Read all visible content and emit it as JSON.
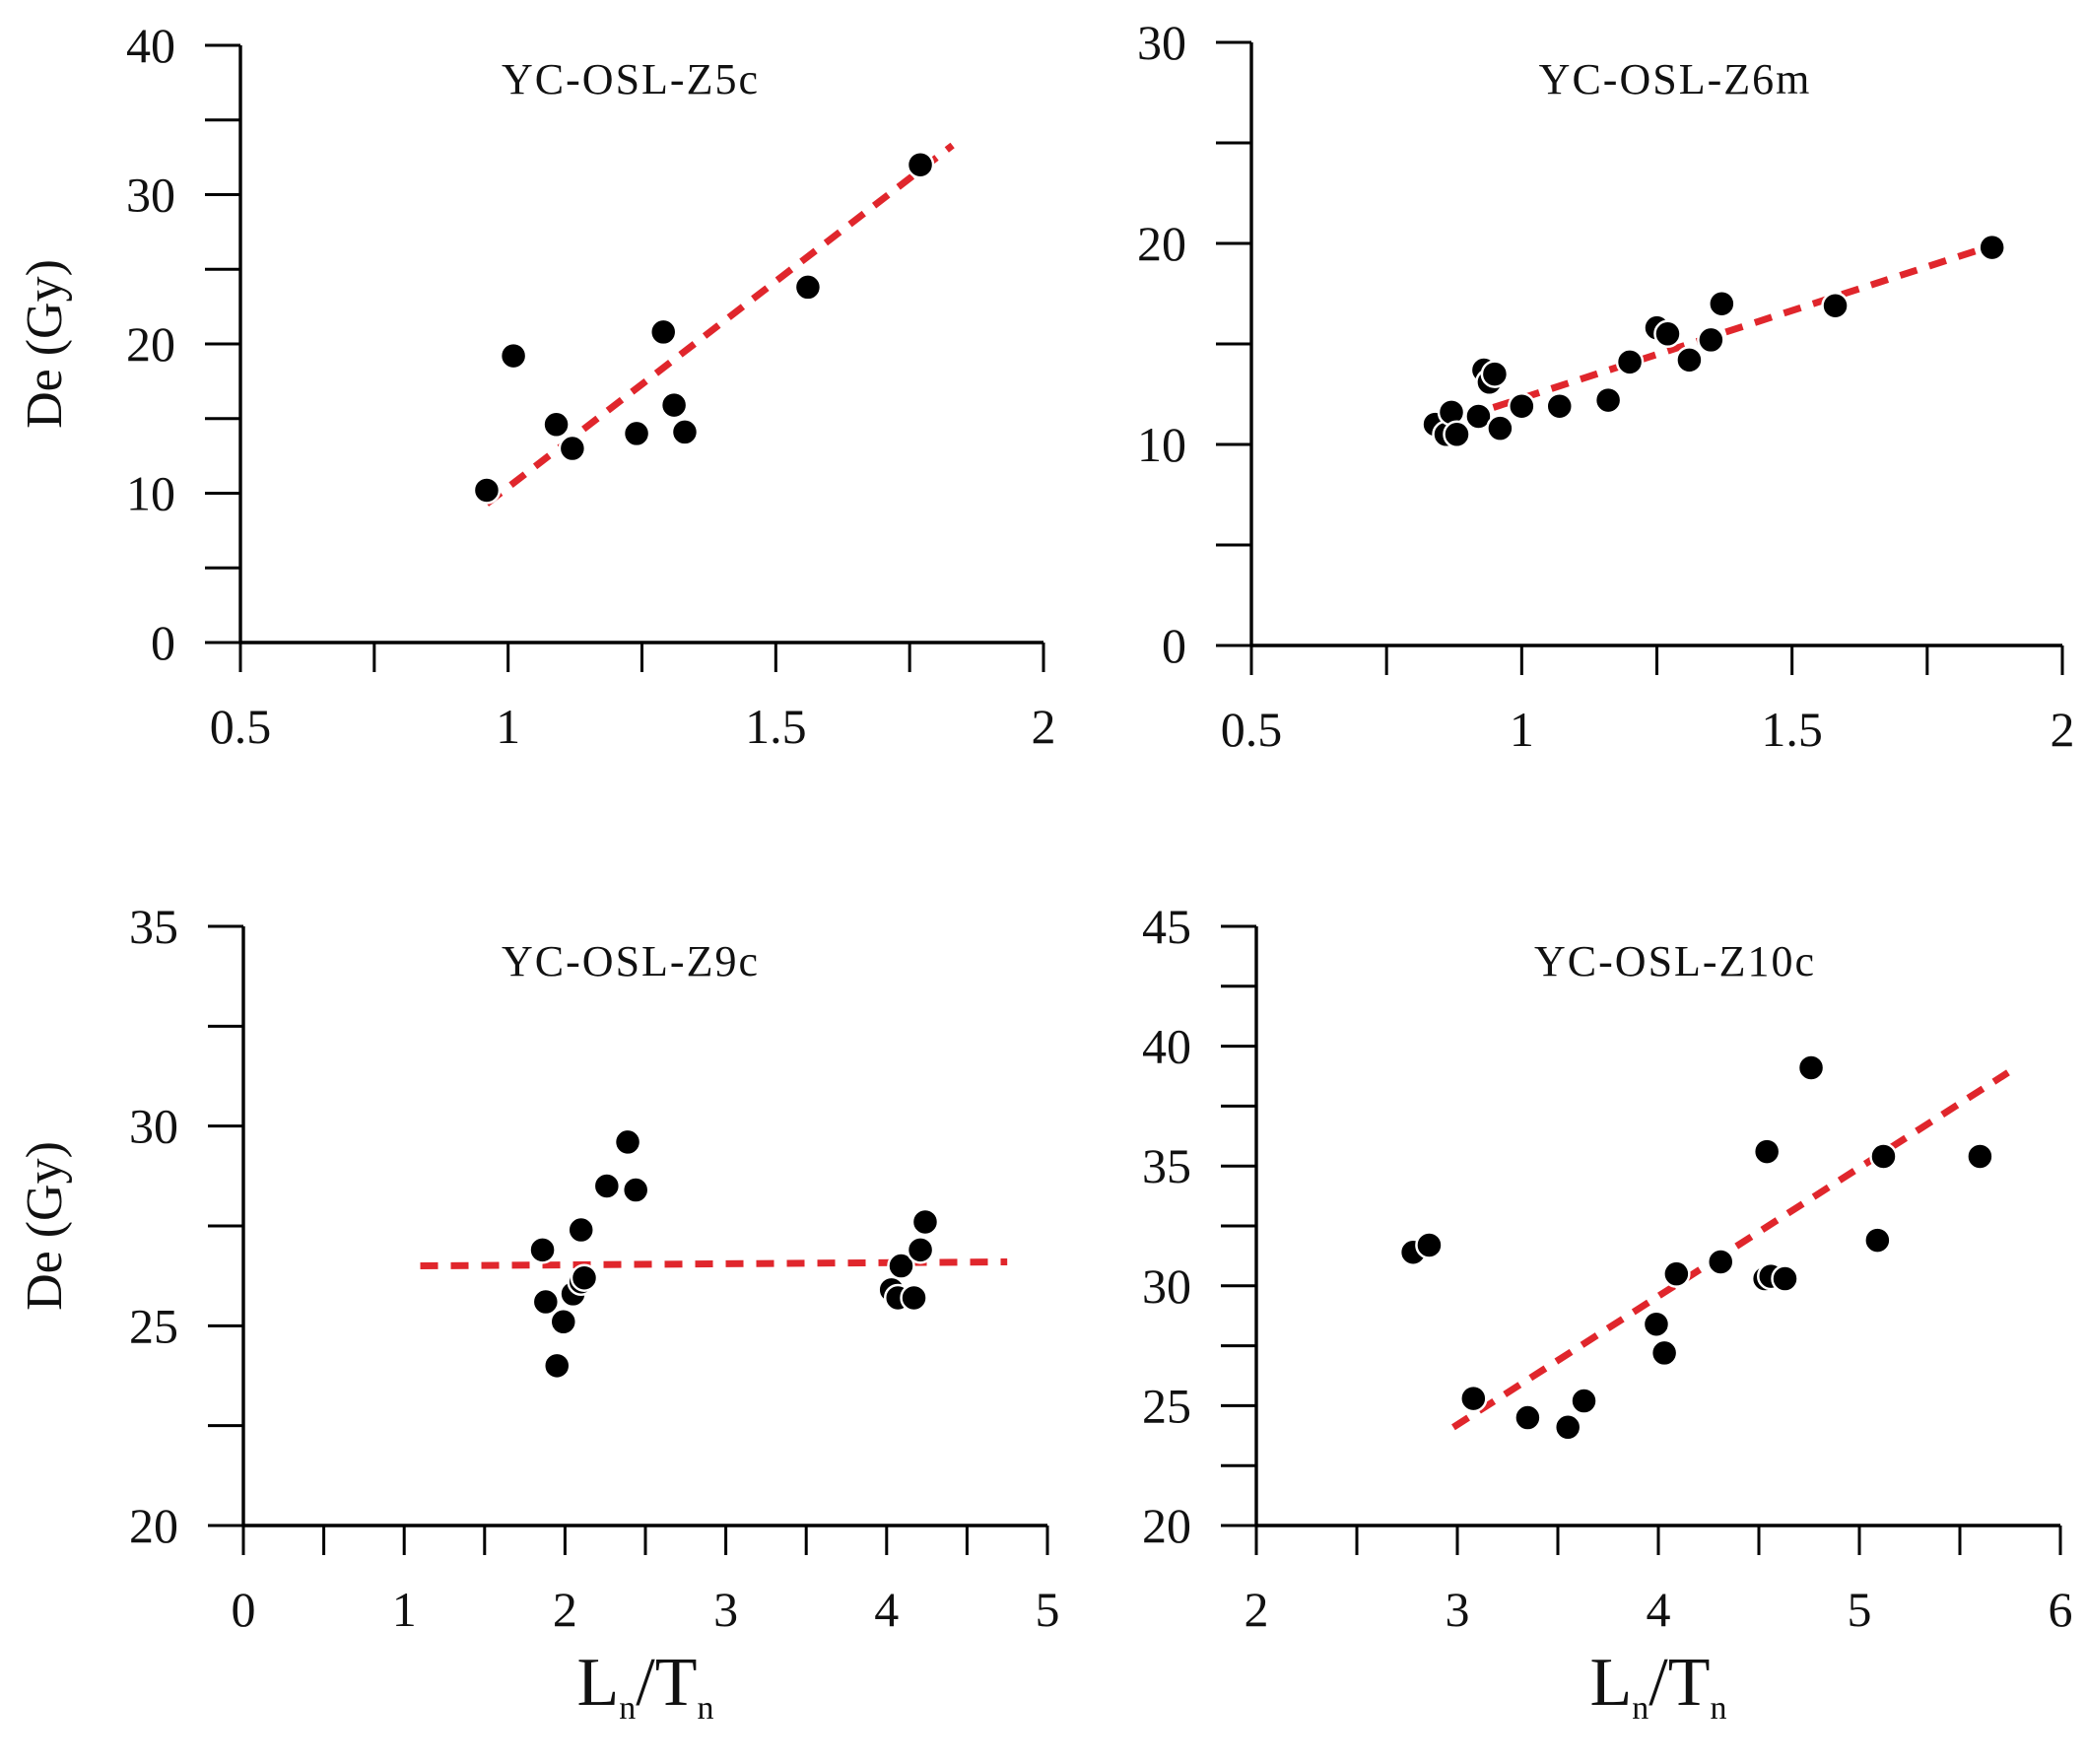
{
  "chart_data": [
    {
      "type": "scatter",
      "title": "YC-OSL-Z5c",
      "xlabel": "",
      "ylabel": "De (Gy)",
      "xlim": [
        0.5,
        2
      ],
      "ylim": [
        0,
        40
      ],
      "xticks": [
        0.5,
        0.75,
        1,
        1.25,
        1.5,
        1.75,
        2
      ],
      "xticklabels": [
        "0.5",
        "",
        "1",
        "",
        "1.5",
        "",
        "2"
      ],
      "yticks": [
        0,
        5,
        10,
        15,
        20,
        25,
        30,
        35,
        40
      ],
      "yticklabels": [
        "0",
        "",
        "10",
        "",
        "20",
        "",
        "30",
        "",
        "40"
      ],
      "x": [
        0.96,
        1.01,
        1.09,
        1.12,
        1.24,
        1.29,
        1.31,
        1.33,
        1.56,
        1.77
      ],
      "y": [
        10.2,
        19.2,
        14.6,
        13.0,
        14.0,
        20.8,
        15.9,
        14.1,
        23.8,
        32.0
      ],
      "fit": {
        "x": [
          0.96,
          1.83
        ],
        "y": [
          9.3,
          33.3
        ]
      }
    },
    {
      "type": "scatter",
      "title": "YC-OSL-Z6m",
      "xlabel": "",
      "ylabel": "",
      "xlim": [
        0.5,
        2
      ],
      "ylim": [
        0,
        30
      ],
      "xticks": [
        0.5,
        0.75,
        1,
        1.25,
        1.5,
        1.75,
        2
      ],
      "xticklabels": [
        "0.5",
        "",
        "1",
        "",
        "1.5",
        "",
        "2"
      ],
      "yticks": [
        0,
        5,
        10,
        15,
        20,
        25,
        30
      ],
      "yticklabels": [
        "0",
        "",
        "10",
        "",
        "20",
        "",
        "30"
      ],
      "x": [
        0.84,
        0.86,
        0.87,
        0.88,
        0.92,
        0.93,
        0.94,
        0.95,
        0.96,
        1.0,
        1.07,
        1.16,
        1.2,
        1.25,
        1.27,
        1.31,
        1.35,
        1.37,
        1.58,
        1.87
      ],
      "y": [
        11.0,
        10.5,
        11.6,
        10.5,
        11.4,
        13.7,
        13.1,
        13.5,
        10.8,
        11.9,
        11.9,
        12.2,
        14.1,
        15.8,
        15.5,
        14.2,
        15.2,
        17.0,
        16.9,
        19.8
      ],
      "fit": {
        "x": [
          0.84,
          1.86
        ],
        "y": [
          10.9,
          19.8
        ]
      }
    },
    {
      "type": "scatter",
      "title": "YC-OSL-Z9c",
      "xlabel": "Ln/Tn",
      "xlabel_main": [
        "L",
        "/T"
      ],
      "xlabel_sub": [
        "n",
        "n"
      ],
      "ylabel": "De (Gy)",
      "xlim": [
        0,
        5
      ],
      "ylim": [
        20,
        35
      ],
      "xticks": [
        0,
        0.5,
        1,
        1.5,
        2,
        2.5,
        3,
        3.5,
        4,
        4.5,
        5
      ],
      "xticklabels": [
        "0",
        "",
        "1",
        "",
        "2",
        "",
        "3",
        "",
        "4",
        "",
        "5"
      ],
      "yticks": [
        20,
        22.5,
        25,
        27.5,
        30,
        32.5,
        35
      ],
      "yticklabels": [
        "20",
        "",
        "25",
        "",
        "30",
        "",
        "35"
      ],
      "x": [
        1.86,
        1.88,
        1.95,
        1.99,
        2.05,
        2.1,
        2.12,
        2.1,
        2.26,
        2.39,
        2.44,
        4.03,
        4.07,
        4.09,
        4.17,
        4.21,
        4.24
      ],
      "y": [
        26.9,
        25.6,
        24.0,
        25.1,
        25.8,
        26.1,
        26.2,
        27.4,
        28.5,
        29.6,
        28.4,
        25.9,
        25.7,
        26.5,
        25.7,
        26.9,
        27.6
      ],
      "fit": {
        "x": [
          1.1,
          4.75
        ],
        "y": [
          26.5,
          26.6
        ]
      }
    },
    {
      "type": "scatter",
      "title": "YC-OSL-Z10c",
      "xlabel": "Ln/Tn",
      "xlabel_main": [
        "L",
        "/T"
      ],
      "xlabel_sub": [
        "n",
        "n"
      ],
      "ylabel": "",
      "xlim": [
        2,
        6
      ],
      "ylim": [
        20,
        45
      ],
      "xticks": [
        2,
        2.5,
        3,
        3.5,
        4,
        4.5,
        5,
        5.5,
        6
      ],
      "xticklabels": [
        "2",
        "",
        "3",
        "",
        "4",
        "",
        "5",
        "",
        "6"
      ],
      "yticks": [
        20,
        22.5,
        25,
        27.5,
        30,
        32.5,
        35,
        37.5,
        40,
        42.5,
        45
      ],
      "yticklabels": [
        "20",
        "",
        "25",
        "",
        "30",
        "",
        "35",
        "",
        "40",
        "",
        "45"
      ],
      "x": [
        2.78,
        2.86,
        3.08,
        3.35,
        3.55,
        3.63,
        3.99,
        4.03,
        4.09,
        4.31,
        4.53,
        4.54,
        4.56,
        4.63,
        4.76,
        5.09,
        5.12,
        5.6
      ],
      "y": [
        31.4,
        31.7,
        25.3,
        24.5,
        24.1,
        25.2,
        28.4,
        27.2,
        30.5,
        31.0,
        30.3,
        35.6,
        30.4,
        30.3,
        39.1,
        31.9,
        35.4,
        35.4
      ],
      "fit": {
        "x": [
          2.98,
          5.74
        ],
        "y": [
          24.1,
          38.9
        ]
      }
    }
  ]
}
